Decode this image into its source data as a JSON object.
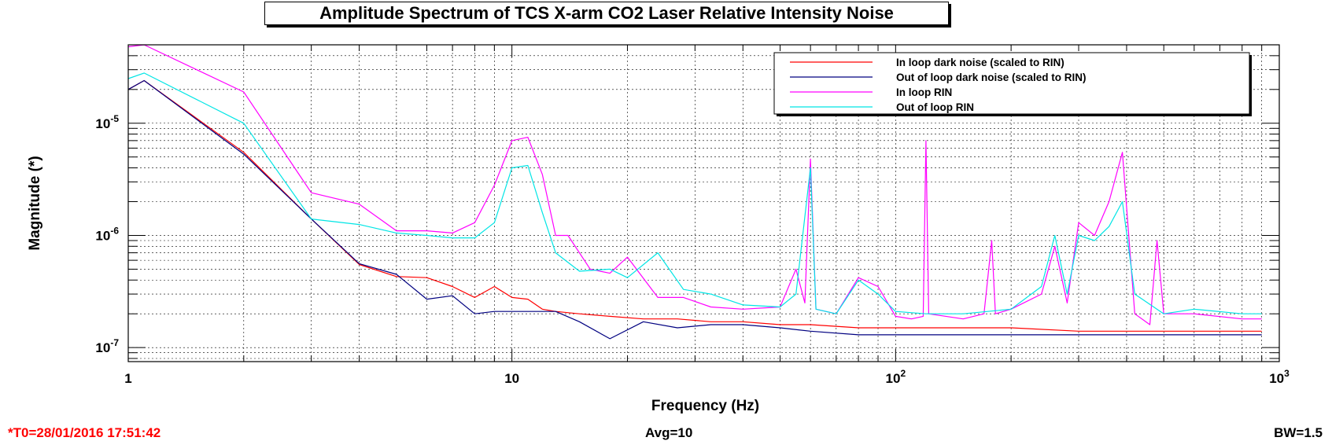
{
  "chart_data": {
    "type": "line",
    "title": "Amplitude Spectrum of TCS X-arm CO2 Laser Relative Intensity Noise",
    "xlabel": "Frequency (Hz)",
    "ylabel": "Magnitude (*)",
    "xscale": "log",
    "yscale": "log",
    "xlim": [
      1,
      1000
    ],
    "ylim": [
      7.5e-08,
      5e-05
    ],
    "grid": true,
    "legend_position": "top-right",
    "x_ticks": [
      {
        "value": 1,
        "label": "1"
      },
      {
        "value": 10,
        "label": "10"
      },
      {
        "value": 100,
        "label": "10",
        "exp": "2"
      },
      {
        "value": 1000,
        "label": "10",
        "exp": "3"
      }
    ],
    "y_ticks": [
      {
        "value": 1e-07,
        "label": "10",
        "exp": "-7"
      },
      {
        "value": 1e-06,
        "label": "10",
        "exp": "-6"
      },
      {
        "value": 1e-05,
        "label": "10",
        "exp": "-5"
      }
    ],
    "series": [
      {
        "name": "In loop dark noise (scaled to RIN)",
        "color": "#ff0000",
        "x": [
          1,
          1.1,
          2,
          3,
          4,
          5,
          6,
          7,
          8,
          9,
          10,
          11,
          12,
          13,
          15,
          18,
          22,
          27,
          33,
          40,
          50,
          60,
          80,
          100,
          150,
          200,
          300,
          400,
          600,
          800,
          900
        ],
        "y": [
          2e-05,
          2.4e-05,
          5.5e-06,
          1.4e-06,
          5.5e-07,
          4.3e-07,
          4.2e-07,
          3.5e-07,
          2.8e-07,
          3.5e-07,
          2.8e-07,
          2.7e-07,
          2.2e-07,
          2.1e-07,
          2e-07,
          1.9e-07,
          1.8e-07,
          1.8e-07,
          1.7e-07,
          1.7e-07,
          1.6e-07,
          1.6e-07,
          1.5e-07,
          1.5e-07,
          1.5e-07,
          1.5e-07,
          1.4e-07,
          1.4e-07,
          1.4e-07,
          1.4e-07,
          1.4e-07
        ]
      },
      {
        "name": "Out of loop dark noise (scaled to RIN)",
        "color": "#000080",
        "x": [
          1,
          1.1,
          2,
          3,
          4,
          5,
          6,
          7,
          8,
          9,
          10,
          11,
          12,
          13,
          15,
          18,
          22,
          27,
          33,
          40,
          50,
          60,
          80,
          100,
          150,
          200,
          300,
          400,
          600,
          800,
          900
        ],
        "y": [
          2e-05,
          2.4e-05,
          5.3e-06,
          1.4e-06,
          5.6e-07,
          4.5e-07,
          2.7e-07,
          2.9e-07,
          2e-07,
          2.1e-07,
          2.1e-07,
          2.1e-07,
          2.1e-07,
          2.1e-07,
          1.7e-07,
          1.2e-07,
          1.7e-07,
          1.5e-07,
          1.6e-07,
          1.6e-07,
          1.5e-07,
          1.4e-07,
          1.3e-07,
          1.3e-07,
          1.3e-07,
          1.3e-07,
          1.3e-07,
          1.3e-07,
          1.3e-07,
          1.3e-07,
          1.3e-07
        ]
      },
      {
        "name": "In loop RIN",
        "color": "#ff00ff",
        "x": [
          1,
          1.1,
          2,
          3,
          4,
          5,
          6,
          7,
          8,
          9,
          10,
          11,
          12,
          13,
          14,
          16,
          18,
          20,
          24,
          28,
          33,
          40,
          50,
          55,
          58,
          60,
          62,
          70,
          80,
          90,
          100,
          110,
          118,
          120,
          122,
          150,
          170,
          178,
          182,
          200,
          240,
          260,
          280,
          300,
          330,
          360,
          390,
          420,
          460,
          480,
          500,
          600,
          800,
          900
        ],
        "y": [
          4.8e-05,
          5e-05,
          1.9e-05,
          2.4e-06,
          1.9e-06,
          1.1e-06,
          1.1e-06,
          1.05e-06,
          1.3e-06,
          2.8e-06,
          7e-06,
          7.5e-06,
          3.5e-06,
          1e-06,
          1e-06,
          5e-07,
          4.6e-07,
          6.4e-07,
          2.8e-07,
          2.8e-07,
          2.3e-07,
          2.2e-07,
          2.3e-07,
          5e-07,
          2.5e-07,
          4.8e-06,
          2.2e-07,
          2e-07,
          4.2e-07,
          3.5e-07,
          1.9e-07,
          1.8e-07,
          1.9e-07,
          7e-06,
          2e-07,
          1.8e-07,
          2e-07,
          9e-07,
          2e-07,
          2.2e-07,
          3e-07,
          8e-07,
          2.5e-07,
          1.3e-06,
          1e-06,
          2e-06,
          5.5e-06,
          2e-07,
          1.6e-07,
          9e-07,
          2e-07,
          2e-07,
          1.8e-07,
          1.8e-07
        ]
      },
      {
        "name": "Out of loop RIN",
        "color": "#00e5e5",
        "x": [
          1,
          1.1,
          2,
          3,
          4,
          5,
          6,
          7,
          8,
          9,
          10,
          11,
          12,
          13,
          15,
          18,
          20,
          24,
          28,
          33,
          40,
          50,
          55,
          60,
          62,
          70,
          80,
          90,
          100,
          120,
          150,
          200,
          240,
          260,
          280,
          300,
          330,
          360,
          390,
          420,
          500,
          600,
          800,
          900
        ],
        "y": [
          2.5e-05,
          2.8e-05,
          1e-05,
          1.4e-06,
          1.25e-06,
          1.05e-06,
          1e-06,
          9.5e-07,
          9.5e-07,
          1.3e-06,
          4e-06,
          4.2e-06,
          1.6e-06,
          7e-07,
          4.8e-07,
          5e-07,
          4.2e-07,
          7e-07,
          3.3e-07,
          3e-07,
          2.4e-07,
          2.3e-07,
          3e-07,
          4e-06,
          2.2e-07,
          2e-07,
          4e-07,
          3e-07,
          2.1e-07,
          2e-07,
          2e-07,
          2.2e-07,
          3.5e-07,
          1e-06,
          3e-07,
          1e-06,
          9e-07,
          1.2e-06,
          2e-06,
          3e-07,
          2e-07,
          2.2e-07,
          2e-07,
          2e-07
        ]
      }
    ]
  },
  "footer": {
    "t0": "*T0=28/01/2016 17:51:42",
    "avg": "Avg=10",
    "bw": "BW=1.5"
  }
}
